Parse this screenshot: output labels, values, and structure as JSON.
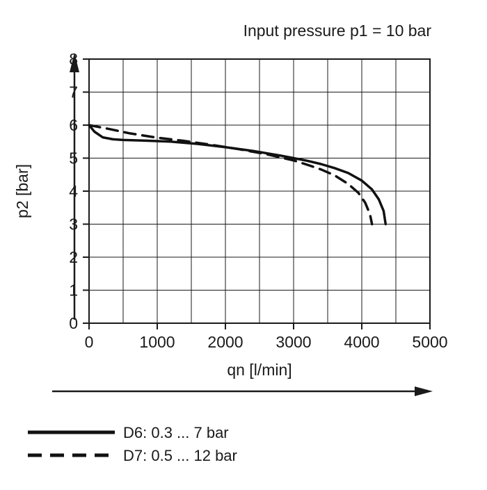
{
  "chart_data": {
    "type": "line",
    "title": "Input pressure p1 = 10 bar",
    "xlabel": "qn [l/min]",
    "ylabel": "p2 [bar]",
    "xlim": [
      0,
      5000
    ],
    "ylim": [
      0,
      8
    ],
    "xticks": [
      0,
      1000,
      2000,
      3000,
      4000,
      5000
    ],
    "yticks": [
      0,
      1,
      2,
      3,
      4,
      5,
      6,
      7,
      8
    ],
    "x_minor_step": 500,
    "grid": true,
    "legend_position": "bottom-left",
    "series": [
      {
        "name": "D6: 0.3 ... 7 bar",
        "style": "solid",
        "points": [
          [
            0,
            6.0
          ],
          [
            80,
            5.8
          ],
          [
            200,
            5.63
          ],
          [
            350,
            5.57
          ],
          [
            500,
            5.55
          ],
          [
            800,
            5.53
          ],
          [
            1200,
            5.5
          ],
          [
            1600,
            5.43
          ],
          [
            2000,
            5.33
          ],
          [
            2400,
            5.22
          ],
          [
            2800,
            5.08
          ],
          [
            3000,
            5.0
          ],
          [
            3200,
            4.92
          ],
          [
            3400,
            4.82
          ],
          [
            3600,
            4.7
          ],
          [
            3800,
            4.55
          ],
          [
            4000,
            4.32
          ],
          [
            4150,
            4.05
          ],
          [
            4250,
            3.75
          ],
          [
            4320,
            3.4
          ],
          [
            4350,
            3.0
          ]
        ]
      },
      {
        "name": "D7: 0.5 ... 12 bar",
        "style": "dashed",
        "points": [
          [
            0,
            6.0
          ],
          [
            300,
            5.88
          ],
          [
            600,
            5.75
          ],
          [
            1000,
            5.62
          ],
          [
            1400,
            5.52
          ],
          [
            1800,
            5.4
          ],
          [
            2200,
            5.27
          ],
          [
            2600,
            5.12
          ],
          [
            3000,
            4.93
          ],
          [
            3200,
            4.8
          ],
          [
            3400,
            4.66
          ],
          [
            3600,
            4.48
          ],
          [
            3800,
            4.22
          ],
          [
            3950,
            3.95
          ],
          [
            4050,
            3.65
          ],
          [
            4120,
            3.3
          ],
          [
            4150,
            3.0
          ]
        ]
      }
    ]
  },
  "colors": {
    "background": "#ffffff",
    "ink": "#1a1a1a"
  }
}
